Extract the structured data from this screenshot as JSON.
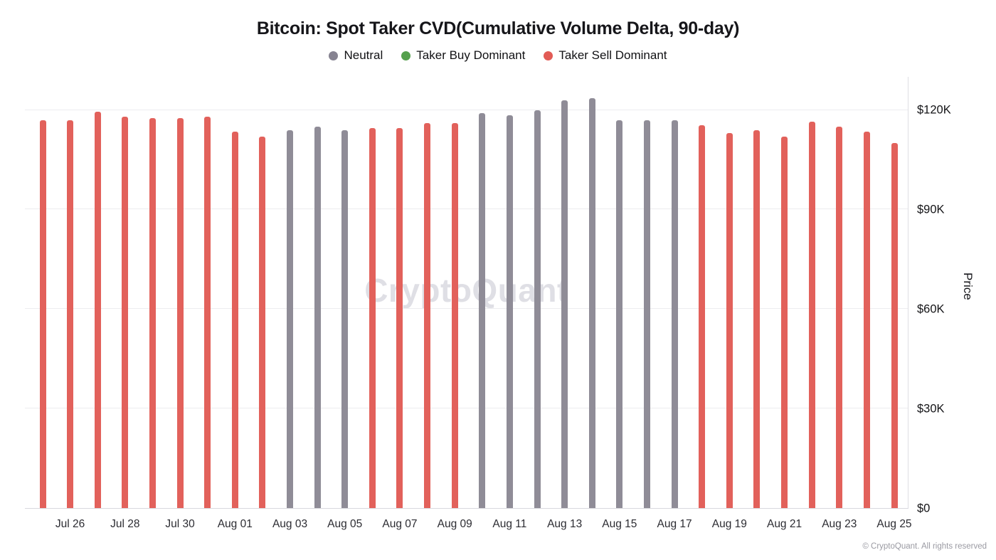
{
  "watermark": "CryptoQuant",
  "footer": "© CryptoQuant. All rights reserved",
  "legend": [
    {
      "label": "Neutral",
      "category": "neutral",
      "color": "#868391"
    },
    {
      "label": "Taker Buy Dominant",
      "category": "buy",
      "color": "#55a04d"
    },
    {
      "label": "Taker Sell Dominant",
      "category": "sell",
      "color": "#e25b55"
    }
  ],
  "category_colors": {
    "neutral": "#8f8c97",
    "buy": "#55a04d",
    "sell": "#e2615b"
  },
  "y_axis": {
    "label": "Price",
    "ticks": [
      "$0",
      "$30K",
      "$60K",
      "$90K",
      "$120K"
    ],
    "tick_values": [
      0,
      30000,
      60000,
      90000,
      120000
    ]
  },
  "chart_data": {
    "type": "bar",
    "title": "Bitcoin: Spot Taker CVD(Cumulative Volume Delta, 90-day)",
    "xlabel": "",
    "ylabel": "Price",
    "ylim": [
      0,
      130000
    ],
    "grid": true,
    "legend_position": "top",
    "points": [
      {
        "date": "Jul 25",
        "value": 117000,
        "category": "sell"
      },
      {
        "date": "Jul 26",
        "value": 117000,
        "category": "sell"
      },
      {
        "date": "Jul 27",
        "value": 119500,
        "category": "sell"
      },
      {
        "date": "Jul 28",
        "value": 118000,
        "category": "sell"
      },
      {
        "date": "Jul 29",
        "value": 117500,
        "category": "sell"
      },
      {
        "date": "Jul 30",
        "value": 117500,
        "category": "sell"
      },
      {
        "date": "Jul 31",
        "value": 118000,
        "category": "sell"
      },
      {
        "date": "Aug 01",
        "value": 113500,
        "category": "sell"
      },
      {
        "date": "Aug 02",
        "value": 112000,
        "category": "sell"
      },
      {
        "date": "Aug 03",
        "value": 114000,
        "category": "neutral"
      },
      {
        "date": "Aug 04",
        "value": 115000,
        "category": "neutral"
      },
      {
        "date": "Aug 05",
        "value": 114000,
        "category": "neutral"
      },
      {
        "date": "Aug 06",
        "value": 114500,
        "category": "sell"
      },
      {
        "date": "Aug 07",
        "value": 114500,
        "category": "sell"
      },
      {
        "date": "Aug 08",
        "value": 116000,
        "category": "sell"
      },
      {
        "date": "Aug 09",
        "value": 116000,
        "category": "sell"
      },
      {
        "date": "Aug 10",
        "value": 119000,
        "category": "neutral"
      },
      {
        "date": "Aug 11",
        "value": 118500,
        "category": "neutral"
      },
      {
        "date": "Aug 12",
        "value": 120000,
        "category": "neutral"
      },
      {
        "date": "Aug 13",
        "value": 123000,
        "category": "neutral"
      },
      {
        "date": "Aug 14",
        "value": 123500,
        "category": "neutral"
      },
      {
        "date": "Aug 15",
        "value": 117000,
        "category": "neutral"
      },
      {
        "date": "Aug 16",
        "value": 117000,
        "category": "neutral"
      },
      {
        "date": "Aug 17",
        "value": 117000,
        "category": "neutral"
      },
      {
        "date": "Aug 18",
        "value": 115500,
        "category": "sell"
      },
      {
        "date": "Aug 19",
        "value": 113000,
        "category": "sell"
      },
      {
        "date": "Aug 20",
        "value": 114000,
        "category": "sell"
      },
      {
        "date": "Aug 21",
        "value": 112000,
        "category": "sell"
      },
      {
        "date": "Aug 22",
        "value": 116500,
        "category": "sell"
      },
      {
        "date": "Aug 23",
        "value": 115000,
        "category": "sell"
      },
      {
        "date": "Aug 24",
        "value": 113500,
        "category": "sell"
      },
      {
        "date": "Aug 25",
        "value": 110000,
        "category": "sell"
      }
    ],
    "x_ticks": [
      {
        "index": 1,
        "label": "Jul 26"
      },
      {
        "index": 3,
        "label": "Jul 28"
      },
      {
        "index": 5,
        "label": "Jul 30"
      },
      {
        "index": 7,
        "label": "Aug 01"
      },
      {
        "index": 9,
        "label": "Aug 03"
      },
      {
        "index": 11,
        "label": "Aug 05"
      },
      {
        "index": 13,
        "label": "Aug 07"
      },
      {
        "index": 15,
        "label": "Aug 09"
      },
      {
        "index": 17,
        "label": "Aug 11"
      },
      {
        "index": 19,
        "label": "Aug 13"
      },
      {
        "index": 21,
        "label": "Aug 15"
      },
      {
        "index": 23,
        "label": "Aug 17"
      },
      {
        "index": 25,
        "label": "Aug 19"
      },
      {
        "index": 27,
        "label": "Aug 21"
      },
      {
        "index": 29,
        "label": "Aug 23"
      },
      {
        "index": 31,
        "label": "Aug 25"
      }
    ]
  }
}
